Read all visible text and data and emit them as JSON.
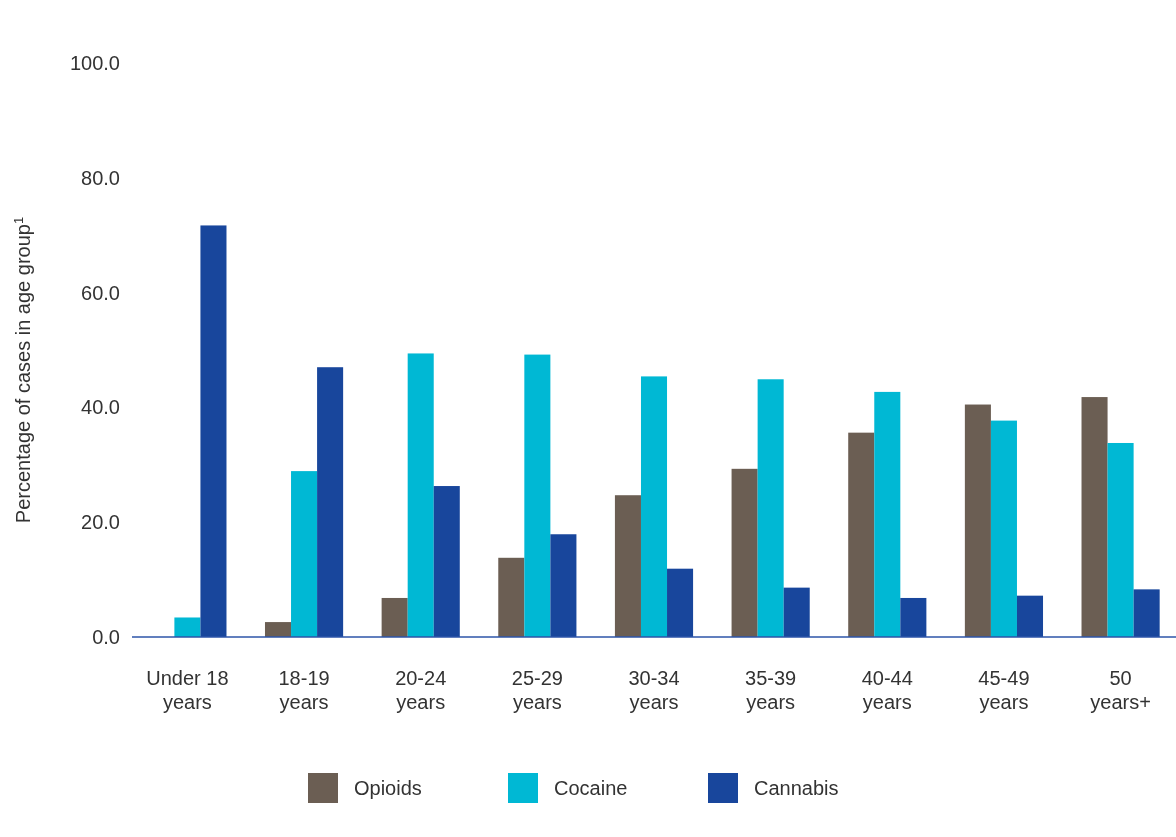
{
  "chart_data": {
    "type": "bar",
    "ylabel": "Percentage of cases in age group$^{1}$",
    "categories": [
      "Under 18 years",
      "18-19 years",
      "20-24 years",
      "25-29 years",
      "30-34 years",
      "35-39 years",
      "40-44 years",
      "45-49 years",
      "50 years+"
    ],
    "series": [
      {
        "name": "Opioids",
        "color": "#6b5e53",
        "values": [
          null,
          2.6,
          6.8,
          13.8,
          24.7,
          29.3,
          35.6,
          40.5,
          41.8
        ]
      },
      {
        "name": "Cocaine",
        "color": "#00b8d4",
        "values": [
          3.4,
          28.9,
          49.4,
          49.2,
          45.4,
          44.9,
          42.7,
          37.7,
          33.8
        ]
      },
      {
        "name": "Cannabis",
        "color": "#18469c",
        "values": [
          71.7,
          47.0,
          26.3,
          17.9,
          11.9,
          8.6,
          6.8,
          7.2,
          8.3
        ]
      }
    ],
    "ylim": [
      0,
      100
    ],
    "yticks": [
      {
        "value": 0,
        "label": "0.0"
      },
      {
        "value": 20,
        "label": "20.0"
      },
      {
        "value": 40,
        "label": "40.0"
      },
      {
        "value": 60,
        "label": "60.0"
      },
      {
        "value": 80,
        "label": "80.0"
      },
      {
        "value": 100,
        "label": "100.0"
      }
    ],
    "grid": false,
    "legend": "bottom"
  }
}
